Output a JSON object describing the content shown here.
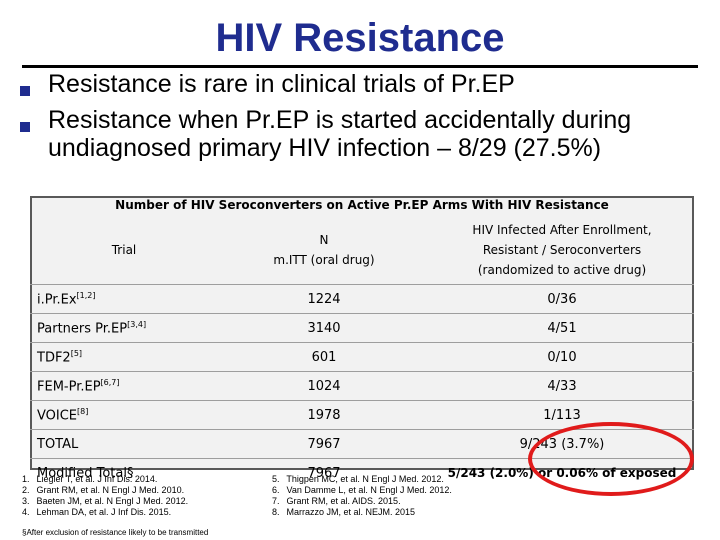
{
  "title": "HIV Resistance",
  "bullets": [
    "Resistance is rare in clinical trials of Pr.EP",
    "Resistance when Pr.EP is started accidentally during undiagnosed  primary HIV infection – 8/29 (27.5%)"
  ],
  "table": {
    "caption": "Number of HIV Seroconverters on Active Pr.EP Arms With HIV Resistance",
    "headers": {
      "trial": "Trial",
      "n_line1": "N",
      "n_line2": "m.ITT (oral drug)",
      "res_line1": "HIV Infected After Enrollment,",
      "res_line2": "Resistant / Seroconverters",
      "res_line3": "(randomized to active drug)"
    },
    "rows": [
      {
        "trial": "i.Pr.Ex",
        "sup": "[1,2]",
        "n": "1224",
        "res": "0/36"
      },
      {
        "trial": "Partners Pr.EP",
        "sup": "[3,4]",
        "n": "3140",
        "res": "4/51"
      },
      {
        "trial": "TDF2",
        "sup": "[5]",
        "n": "601",
        "res": "0/10"
      },
      {
        "trial": "FEM-Pr.EP",
        "sup": "[6,7]",
        "n": "1024",
        "res": "4/33"
      },
      {
        "trial": "VOICE",
        "sup": "[8]",
        "n": "1978",
        "res": "1/113"
      },
      {
        "trial": "TOTAL",
        "sup": "",
        "n": "7967",
        "res": "9/243 (3.7%)"
      },
      {
        "trial": "Modified Total§",
        "sup": "",
        "n": "7967",
        "res": "5/243 (2.0%) or 0.06% of exposed"
      }
    ]
  },
  "references_left": [
    {
      "n": "1.",
      "text": "Liegler T, et al. J Inf Dis. 2014."
    },
    {
      "n": "2.",
      "text": "Grant RM, et al. N Engl J Med. 2010."
    },
    {
      "n": "3.",
      "text": "Baeten JM, et al. N Engl J Med. 2012."
    },
    {
      "n": "4.",
      "text": "Lehman DA, et al.  J Inf Dis.  2015."
    }
  ],
  "references_right": [
    {
      "n": "5.",
      "text": "Thigpen MC, et al. N Engl J Med. 2012."
    },
    {
      "n": "6.",
      "text": "Van Damme L, et al. N Engl J Med. 2012."
    },
    {
      "n": "7.",
      "text": "Grant RM, et al.  AIDS. 2015."
    },
    {
      "n": "8.",
      "text": "Marrazzo JM, et al.  NEJM. 2015"
    }
  ],
  "footnote": "§After exclusion of resistance likely to be transmitted",
  "colors": {
    "title": "#1f2c8f",
    "highlight": "#e01b1b",
    "table_bg": "#f2f2f2"
  }
}
